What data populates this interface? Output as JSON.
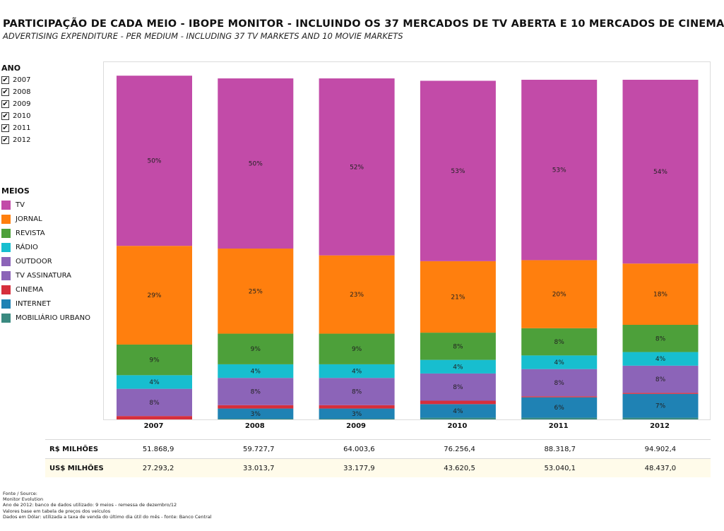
{
  "title": "PARTICIPAÇÃO DE CADA MEIO - IBOPE MONITOR - INCLUINDO OS 37 MERCADOS DE TV ABERTA E 10 MERCADOS DE CINEMA",
  "subtitle": "ADVERTISING EXPENDITURE - PER MEDIUM - INCLUDING 37 TV MARKETS AND 10 MOVIE MARKETS",
  "year_filter": {
    "header": "ANO",
    "check_glyph": "✔",
    "years": [
      {
        "label": "2007",
        "checked": true
      },
      {
        "label": "2008",
        "checked": true
      },
      {
        "label": "2009",
        "checked": true
      },
      {
        "label": "2010",
        "checked": true
      },
      {
        "label": "2011",
        "checked": true
      },
      {
        "label": "2012",
        "checked": true
      }
    ]
  },
  "legend": {
    "header": "MEIOS",
    "items": [
      {
        "label": "TV",
        "color": "#c24ba8"
      },
      {
        "label": "JORNAL",
        "color": "#ff7f0e"
      },
      {
        "label": "REVISTA",
        "color": "#4da03a"
      },
      {
        "label": "RÁDIO",
        "color": "#17becf"
      },
      {
        "label": "OUTDOOR",
        "color": "#8c64b8"
      },
      {
        "label": "TV ASSINATURA",
        "color": "#8c64b8"
      },
      {
        "label": "CINEMA",
        "color": "#d62f3c"
      },
      {
        "label": "INTERNET",
        "color": "#1f82b4"
      },
      {
        "label": "MOBILIÁRIO URBANO",
        "color": "#3a8a80"
      }
    ]
  },
  "chart_data": {
    "type": "bar",
    "stacked": true,
    "normalized": true,
    "categories": [
      "2007",
      "2008",
      "2009",
      "2010",
      "2011",
      "2012"
    ],
    "series": [
      {
        "name": "MOBILIÁRIO URBANO",
        "color": "#3a8a80",
        "values": [
          0.0,
          0.2,
          0.2,
          0.5,
          0.5,
          0.5
        ]
      },
      {
        "name": "INTERNET",
        "color": "#1f82b4",
        "values": [
          0.0,
          3,
          3,
          4,
          6,
          7
        ]
      },
      {
        "name": "CINEMA",
        "color": "#d62f3c",
        "values": [
          1.0,
          1.0,
          1.0,
          1.0,
          0.3,
          0.3
        ]
      },
      {
        "name": "OUTDOOR",
        "color": "#8c64b8",
        "values": [
          0,
          0,
          0,
          0,
          0,
          0
        ]
      },
      {
        "name": "TV ASSINATURA",
        "color": "#8c64b8",
        "values": [
          8,
          8,
          8,
          8,
          8,
          8
        ]
      },
      {
        "name": "RÁDIO",
        "color": "#17becf",
        "values": [
          4,
          4,
          4,
          4,
          4,
          4
        ]
      },
      {
        "name": "REVISTA",
        "color": "#4da03a",
        "values": [
          9,
          9,
          9,
          8,
          8,
          8
        ]
      },
      {
        "name": "JORNAL",
        "color": "#ff7f0e",
        "values": [
          29,
          25,
          23,
          21,
          20,
          18
        ]
      },
      {
        "name": "TV",
        "color": "#c24ba8",
        "values": [
          50,
          50,
          52,
          53,
          53,
          54
        ]
      }
    ],
    "data_labels": [
      {
        "series": "TV",
        "labels": [
          "50%",
          "50%",
          "52%",
          "53%",
          "53%",
          "54%"
        ]
      },
      {
        "series": "JORNAL",
        "labels": [
          "29%",
          "25%",
          "23%",
          "21%",
          "20%",
          "18%"
        ]
      },
      {
        "series": "REVISTA",
        "labels": [
          "9%",
          "9%",
          "9%",
          "8%",
          "8%",
          "8%"
        ]
      },
      {
        "series": "RÁDIO",
        "labels": [
          "4%",
          "4%",
          "4%",
          "4%",
          "4%",
          "4%"
        ]
      },
      {
        "series": "TV ASSINATURA",
        "labels": [
          "8%",
          "8%",
          "8%",
          "8%",
          "8%",
          "8%"
        ]
      },
      {
        "series": "INTERNET",
        "labels": [
          "",
          "3%",
          "3%",
          "4%",
          "6%",
          "7%"
        ]
      }
    ]
  },
  "summary_table": {
    "rows": [
      {
        "header": "R$ MILHÕES",
        "values": [
          "51.868,9",
          "59.727,7",
          "64.003,6",
          "76.256,4",
          "88.318,7",
          "94.902,4"
        ]
      },
      {
        "header": "US$ MILHÕES",
        "values": [
          "27.293,2",
          "33.013,7",
          "33.177,9",
          "43.620,5",
          "53.040,1",
          "48.437,0"
        ]
      }
    ]
  },
  "source_note": {
    "lines": [
      "Fonte / Source:",
      "Monitor Evolution",
      "Ano de 2012: banco de dados utilizado: 9 meios - remessa de dezembro/12",
      "Valores base em tabela de preços dos veículos",
      "Dados em Dólar: utilizada a taxa de venda do último dia útil do mês - fonte: Banco Central"
    ]
  }
}
